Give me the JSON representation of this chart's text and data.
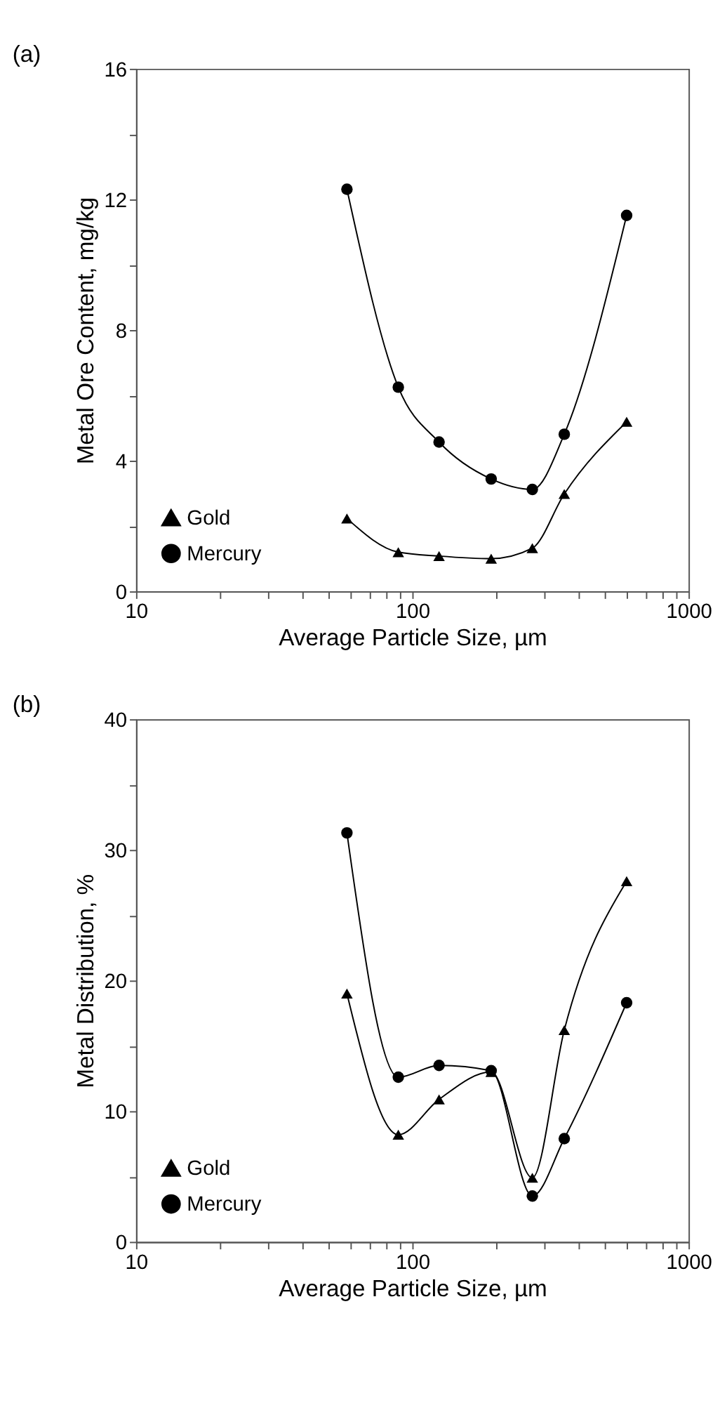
{
  "chart_data": [
    {
      "type": "line",
      "title": "(a)",
      "xlabel": "Average Particle Size, µm",
      "ylabel": "Metal Ore Content, mg/kg",
      "log": "x",
      "grid": false,
      "legend": "bottom left",
      "line_style": "solid",
      "xlim": [
        10,
        1000
      ],
      "xticks": [
        10,
        {
          "value": 20,
          "label": null
        },
        {
          "value": 30,
          "label": null
        },
        {
          "value": 40,
          "label": null
        },
        {
          "value": 50,
          "label": null
        },
        {
          "value": 60,
          "label": null
        },
        {
          "value": 70,
          "label": null
        },
        {
          "value": 80,
          "label": null
        },
        {
          "value": 90,
          "label": null
        },
        100,
        {
          "value": 200,
          "label": null
        },
        {
          "value": 300,
          "label": null
        },
        {
          "value": 400,
          "label": null
        },
        {
          "value": 500,
          "label": null
        },
        {
          "value": 600,
          "label": null
        },
        {
          "value": 700,
          "label": null
        },
        {
          "value": 800,
          "label": null
        },
        {
          "value": 900,
          "label": null
        },
        1000
      ],
      "ylim": [
        0,
        16
      ],
      "yticks": [
        0,
        {
          "value": 2,
          "label": null
        },
        4,
        {
          "value": 6,
          "label": null
        },
        8,
        {
          "value": 10,
          "label": null
        },
        12,
        {
          "value": 14,
          "label": null
        },
        16
      ],
      "x": [
        58,
        89,
        125,
        193,
        272,
        355,
        597
      ],
      "series": [
        {
          "name": "Gold",
          "color": "#000000",
          "marker": "triangle",
          "values": [
            2.23,
            1.2,
            1.08,
            1.0,
            1.32,
            2.98,
            5.19
          ]
        },
        {
          "name": "Mercury",
          "color": "#000000",
          "marker": "circle",
          "values": [
            12.31,
            6.25,
            4.57,
            3.44,
            3.12,
            4.81,
            11.51
          ]
        }
      ]
    },
    {
      "type": "line",
      "title": "(b)",
      "xlabel": "Average Particle Size, µm",
      "ylabel": "Metal Distribution, %",
      "log": "x",
      "grid": false,
      "legend": "bottom left",
      "line_style": "solid",
      "xlim": [
        10,
        1000
      ],
      "xticks": [
        10,
        {
          "value": 20,
          "label": null
        },
        {
          "value": 30,
          "label": null
        },
        {
          "value": 40,
          "label": null
        },
        {
          "value": 50,
          "label": null
        },
        {
          "value": 60,
          "label": null
        },
        {
          "value": 70,
          "label": null
        },
        {
          "value": 80,
          "label": null
        },
        {
          "value": 90,
          "label": null
        },
        100,
        {
          "value": 200,
          "label": null
        },
        {
          "value": 300,
          "label": null
        },
        {
          "value": 400,
          "label": null
        },
        {
          "value": 500,
          "label": null
        },
        {
          "value": 600,
          "label": null
        },
        {
          "value": 700,
          "label": null
        },
        {
          "value": 800,
          "label": null
        },
        {
          "value": 900,
          "label": null
        },
        1000
      ],
      "ylim": [
        0,
        40
      ],
      "yticks": [
        0,
        {
          "value": 5,
          "label": null
        },
        10,
        {
          "value": 15,
          "label": null
        },
        20,
        {
          "value": 25,
          "label": null
        },
        30,
        {
          "value": 35,
          "label": null
        },
        40
      ],
      "x": [
        58,
        89,
        125,
        193,
        272,
        355,
        597
      ],
      "series": [
        {
          "name": "Gold",
          "color": "#000000",
          "marker": "triangle",
          "values": [
            19.0,
            8.2,
            10.9,
            13.0,
            4.9,
            16.2,
            27.6
          ]
        },
        {
          "name": "Mercury",
          "color": "#000000",
          "marker": "circle",
          "values": [
            31.3,
            12.6,
            13.5,
            13.1,
            3.5,
            7.9,
            18.3
          ]
        }
      ]
    }
  ]
}
